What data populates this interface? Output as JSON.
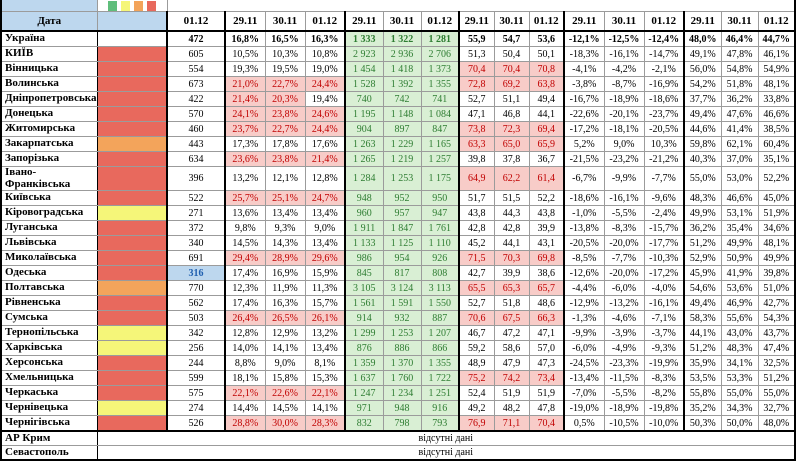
{
  "header": {
    "date_label": "Дата",
    "dates": [
      "01.12",
      "29.11",
      "30.11",
      "01.12",
      "29.11",
      "30.11",
      "01.12",
      "29.11",
      "30.11",
      "01.12",
      "29.11",
      "30.11",
      "01.12",
      "29.11",
      "30.11",
      "01.12"
    ],
    "legend_colors": [
      "#5FBE7B",
      "#F5F679",
      "#F3A45B",
      "#E8695D"
    ]
  },
  "no_data_label": "відсутні дані",
  "colors": {
    "header_blue": "#BDD7EE",
    "indicator": {
      "red": "#E8695D",
      "orange": "#F3A45B",
      "yellow": "#F5F679"
    },
    "pink_bg": "#F8CCC8",
    "red_text": "#C00000",
    "green_bg": "#D9EFD4",
    "green_text": "#2E7D32",
    "select_bg": "#BDD7EE",
    "select_text": "#1F5FAF"
  },
  "rows": [
    {
      "name": "Україна",
      "bold": true,
      "indicator": null,
      "m": "....ggg.........",
      "v": [
        "472",
        "16,8%",
        "16,5%",
        "16,3%",
        "1 333",
        "1 322",
        "1 281",
        "55,9",
        "54,7",
        "53,6",
        "-12,1%",
        "-12,5%",
        "-12,4%",
        "48,0%",
        "46,4%",
        "44,7%"
      ]
    },
    {
      "name": "КИЇВ",
      "indicator": "red",
      "m": "....ggg.........",
      "v": [
        "605",
        "10,5%",
        "10,3%",
        "10,8%",
        "2 923",
        "2 936",
        "2 706",
        "51,3",
        "50,4",
        "50,1",
        "-18,3%",
        "-16,1%",
        "-14,7%",
        "49,1%",
        "47,8%",
        "46,1%"
      ]
    },
    {
      "name": "Вінницька",
      "indicator": "red",
      "m": "....gggppp......",
      "v": [
        "554",
        "19,3%",
        "19,5%",
        "19,0%",
        "1 454",
        "1 418",
        "1 373",
        "70,4",
        "70,4",
        "70,8",
        "-4,1%",
        "-4,2%",
        "-2,1%",
        "56,0%",
        "54,8%",
        "54,9%"
      ]
    },
    {
      "name": "Волинська",
      "indicator": "red",
      "m": ".pppgggppp......",
      "v": [
        "673",
        "21,0%",
        "22,7%",
        "24,4%",
        "1 528",
        "1 392",
        "1 355",
        "72,8",
        "69,2",
        "63,8",
        "-3,8%",
        "-8,7%",
        "-16,9%",
        "54,2%",
        "51,8%",
        "48,1%"
      ]
    },
    {
      "name": "Дніпропетровська",
      "indicator": "red",
      "m": ".pp.ggg.........",
      "v": [
        "422",
        "21,4%",
        "20,3%",
        "19,4%",
        "740",
        "742",
        "741",
        "52,7",
        "51,1",
        "49,4",
        "-16,7%",
        "-18,9%",
        "-18,6%",
        "37,7%",
        "36,2%",
        "33,8%"
      ]
    },
    {
      "name": "Донецька",
      "indicator": "red",
      "m": ".pppggg.........",
      "v": [
        "570",
        "24,1%",
        "23,8%",
        "24,6%",
        "1 195",
        "1 148",
        "1 084",
        "47,1",
        "46,8",
        "44,1",
        "-22,6%",
        "-20,1%",
        "-23,7%",
        "49,4%",
        "47,6%",
        "46,6%"
      ]
    },
    {
      "name": "Житомирська",
      "indicator": "red",
      "m": ".pppgggppp......",
      "v": [
        "460",
        "23,7%",
        "22,7%",
        "24,4%",
        "904",
        "897",
        "847",
        "73,8",
        "72,3",
        "69,4",
        "-17,2%",
        "-18,1%",
        "-20,5%",
        "44,6%",
        "41,4%",
        "38,5%"
      ]
    },
    {
      "name": "Закарпатська",
      "indicator": "orange",
      "m": "....gggppp......",
      "v": [
        "443",
        "17,3%",
        "17,8%",
        "17,6%",
        "1 263",
        "1 229",
        "1 165",
        "63,3",
        "65,0",
        "65,9",
        "5,2%",
        "9,0%",
        "10,3%",
        "59,8%",
        "62,1%",
        "60,4%"
      ]
    },
    {
      "name": "Запорізька",
      "indicator": "red",
      "m": ".pppggg.........",
      "v": [
        "634",
        "23,6%",
        "23,8%",
        "21,4%",
        "1 265",
        "1 219",
        "1 257",
        "39,8",
        "37,8",
        "36,7",
        "-21,5%",
        "-23,2%",
        "-21,2%",
        "40,3%",
        "37,0%",
        "35,1%"
      ]
    },
    {
      "name": "Івано-Франківська",
      "indicator": "red",
      "m": "....gggppp......",
      "v": [
        "396",
        "13,2%",
        "12,1%",
        "12,8%",
        "1 284",
        "1 253",
        "1 175",
        "64,9",
        "62,2",
        "61,4",
        "-6,7%",
        "-9,9%",
        "-7,7%",
        "55,0%",
        "53,0%",
        "52,2%"
      ]
    },
    {
      "name": "Київська",
      "indicator": "red",
      "m": ".pppggg.........",
      "v": [
        "522",
        "25,7%",
        "25,1%",
        "24,7%",
        "948",
        "952",
        "950",
        "51,7",
        "51,5",
        "52,2",
        "-18,6%",
        "-16,1%",
        "-9,6%",
        "48,3%",
        "46,6%",
        "45,0%"
      ]
    },
    {
      "name": "Кіровоградська",
      "indicator": "yellow",
      "m": "....ggg.........",
      "v": [
        "271",
        "13,6%",
        "13,4%",
        "13,4%",
        "960",
        "957",
        "947",
        "43,8",
        "44,3",
        "43,8",
        "-1,0%",
        "-5,5%",
        "-2,4%",
        "49,9%",
        "53,1%",
        "51,9%"
      ]
    },
    {
      "name": "Луганська",
      "indicator": "red",
      "m": "....ggg.........",
      "v": [
        "372",
        "9,8%",
        "9,3%",
        "9,0%",
        "1 911",
        "1 847",
        "1 761",
        "42,8",
        "42,8",
        "39,9",
        "-13,8%",
        "-8,3%",
        "-15,7%",
        "36,2%",
        "35,4%",
        "34,6%"
      ]
    },
    {
      "name": "Львівська",
      "indicator": "red",
      "m": "....ggg.........",
      "v": [
        "340",
        "14,5%",
        "14,3%",
        "13,4%",
        "1 133",
        "1 125",
        "1 110",
        "45,2",
        "44,1",
        "43,1",
        "-20,5%",
        "-20,0%",
        "-17,7%",
        "51,2%",
        "49,9%",
        "48,1%"
      ]
    },
    {
      "name": "Миколаївська",
      "indicator": "red",
      "m": ".pppgggppp......",
      "v": [
        "691",
        "29,4%",
        "28,9%",
        "29,6%",
        "986",
        "954",
        "926",
        "71,5",
        "70,3",
        "69,8",
        "-8,5%",
        "-7,7%",
        "-10,3%",
        "52,9%",
        "50,9%",
        "49,9%"
      ]
    },
    {
      "name": "Одеська",
      "indicator": "red",
      "m": "s...ggg.........",
      "v": [
        "316",
        "17,4%",
        "16,9%",
        "15,9%",
        "845",
        "817",
        "808",
        "42,7",
        "39,9",
        "38,6",
        "-12,6%",
        "-20,0%",
        "-17,2%",
        "45,9%",
        "41,9%",
        "39,8%"
      ]
    },
    {
      "name": "Полтавська",
      "indicator": "orange",
      "m": "....gggppp......",
      "v": [
        "770",
        "12,3%",
        "11,9%",
        "11,3%",
        "3 105",
        "3 124",
        "3 113",
        "65,5",
        "65,3",
        "65,7",
        "-4,4%",
        "-6,0%",
        "-4,0%",
        "54,6%",
        "53,6%",
        "51,0%"
      ]
    },
    {
      "name": "Рівненська",
      "indicator": "red",
      "m": "....ggg.........",
      "v": [
        "562",
        "17,4%",
        "16,3%",
        "15,7%",
        "1 561",
        "1 591",
        "1 550",
        "52,7",
        "51,8",
        "48,6",
        "-12,9%",
        "-13,2%",
        "-16,1%",
        "49,4%",
        "46,9%",
        "42,7%"
      ]
    },
    {
      "name": "Сумська",
      "indicator": "red",
      "m": ".pppgggppp......",
      "v": [
        "503",
        "26,4%",
        "26,5%",
        "26,1%",
        "914",
        "932",
        "887",
        "70,6",
        "67,5",
        "66,3",
        "-1,3%",
        "-4,6%",
        "-7,1%",
        "58,3%",
        "55,6%",
        "54,3%"
      ]
    },
    {
      "name": "Тернопільська",
      "indicator": "yellow",
      "m": "....ggg.........",
      "v": [
        "342",
        "12,8%",
        "12,9%",
        "13,2%",
        "1 299",
        "1 253",
        "1 207",
        "46,7",
        "47,2",
        "47,1",
        "-9,9%",
        "-3,9%",
        "-3,7%",
        "44,1%",
        "43,0%",
        "43,7%"
      ]
    },
    {
      "name": "Харківська",
      "indicator": "yellow",
      "m": "....ggg.........",
      "v": [
        "256",
        "14,0%",
        "14,1%",
        "13,4%",
        "876",
        "886",
        "866",
        "59,2",
        "58,6",
        "57,0",
        "-6,0%",
        "-4,9%",
        "-9,3%",
        "51,2%",
        "48,3%",
        "47,4%"
      ]
    },
    {
      "name": "Херсонська",
      "indicator": "red",
      "m": "....ggg.........",
      "v": [
        "244",
        "8,8%",
        "9,0%",
        "8,1%",
        "1 359",
        "1 370",
        "1 355",
        "48,9",
        "47,9",
        "47,3",
        "-24,5%",
        "-23,3%",
        "-19,9%",
        "35,9%",
        "34,1%",
        "32,5%"
      ]
    },
    {
      "name": "Хмельницька",
      "indicator": "red",
      "m": "....gggppp......",
      "v": [
        "599",
        "18,1%",
        "15,8%",
        "15,3%",
        "1 637",
        "1 760",
        "1 722",
        "75,2",
        "74,2",
        "73,4",
        "-13,4%",
        "-11,5%",
        "-8,3%",
        "53,5%",
        "53,3%",
        "51,2%"
      ]
    },
    {
      "name": "Черкаська",
      "indicator": "red",
      "m": ".pppggg.........",
      "v": [
        "575",
        "22,1%",
        "22,6%",
        "22,1%",
        "1 247",
        "1 234",
        "1 251",
        "52,4",
        "51,9",
        "51,9",
        "-7,0%",
        "-5,5%",
        "-8,2%",
        "55,8%",
        "55,0%",
        "55,0%"
      ]
    },
    {
      "name": "Чернівецька",
      "indicator": "yellow",
      "m": "....ggg.........",
      "v": [
        "274",
        "14,4%",
        "14,5%",
        "14,1%",
        "971",
        "948",
        "916",
        "49,2",
        "48,2",
        "47,8",
        "-19,0%",
        "-18,9%",
        "-19,8%",
        "35,2%",
        "34,3%",
        "32,7%"
      ]
    },
    {
      "name": "Чернігівська",
      "indicator": "red",
      "m": ".pppgggppp......",
      "v": [
        "526",
        "28,8%",
        "30,0%",
        "28,3%",
        "832",
        "798",
        "793",
        "76,9",
        "71,1",
        "70,4",
        "0,5%",
        "-10,5%",
        "-10,0%",
        "50,3%",
        "50,0%",
        "48,0%"
      ]
    },
    {
      "name": "АР Крим",
      "no_data": true
    },
    {
      "name": "Севастополь",
      "no_data": true
    }
  ]
}
